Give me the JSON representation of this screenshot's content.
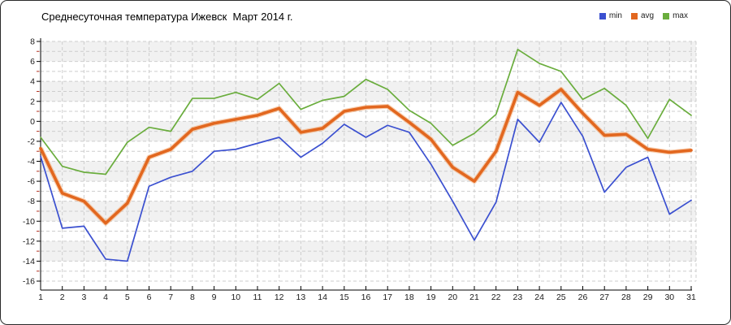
{
  "chart_data": {
    "type": "line",
    "title": "Среднесуточная температура Ижевск  Март 2014 г.",
    "xlabel": "",
    "ylabel": "",
    "x": [
      1,
      2,
      3,
      4,
      5,
      6,
      7,
      8,
      9,
      10,
      11,
      12,
      13,
      14,
      15,
      16,
      17,
      18,
      19,
      20,
      21,
      22,
      23,
      24,
      25,
      26,
      27,
      28,
      29,
      30,
      31
    ],
    "ylim": [
      -16,
      8
    ],
    "ytick_step": 2,
    "grid": true,
    "grid_style": "dashed, every 1 unit horizontal, every day vertical",
    "band_fill": "#f1f1f1",
    "grid_color": "#cdcdcd",
    "axis_color": "#000000",
    "minor_tick_color": "#b23222",
    "legend_position": "top-right",
    "series": [
      {
        "name": "min",
        "color": "#3b50d0",
        "values": [
          -3.5,
          -10.7,
          -10.5,
          -13.8,
          -14.0,
          -6.5,
          -5.6,
          -5.0,
          -3.0,
          -2.8,
          -2.2,
          -1.6,
          -3.6,
          -2.2,
          -0.3,
          -1.6,
          -0.4,
          -1.1,
          -4.3,
          -8.0,
          -11.9,
          -8.1,
          0.2,
          -2.1,
          1.9,
          -1.5,
          -7.1,
          -4.6,
          -3.6,
          -9.3,
          -7.9
        ]
      },
      {
        "name": "avg",
        "color": "#e2671f",
        "values": [
          -2.7,
          -7.2,
          -8.0,
          -10.2,
          -8.2,
          -3.6,
          -2.8,
          -0.8,
          -0.2,
          0.2,
          0.6,
          1.3,
          -1.1,
          -0.7,
          1.0,
          1.4,
          1.5,
          -0.1,
          -1.8,
          -4.6,
          -6.0,
          -3.0,
          2.9,
          1.6,
          3.2,
          0.8,
          -1.4,
          -1.3,
          -2.8,
          -3.1,
          -2.9
        ]
      },
      {
        "name": "max",
        "color": "#6aad3d",
        "values": [
          -1.6,
          -4.5,
          -5.1,
          -5.3,
          -2.1,
          -0.6,
          -1.0,
          2.3,
          2.3,
          2.9,
          2.2,
          3.8,
          1.2,
          2.1,
          2.5,
          4.2,
          3.2,
          1.1,
          -0.2,
          -2.4,
          -1.2,
          0.7,
          7.2,
          5.8,
          5.0,
          2.2,
          3.3,
          1.6,
          -1.7,
          2.2,
          0.6
        ]
      }
    ]
  }
}
